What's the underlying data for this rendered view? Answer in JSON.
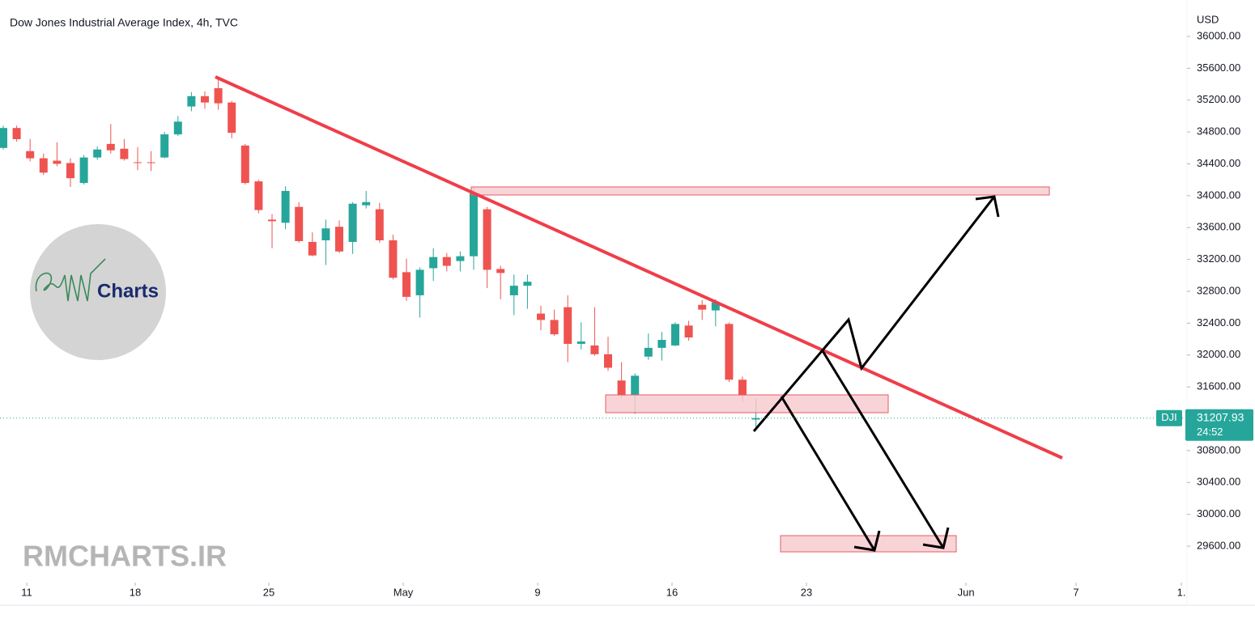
{
  "chart_data": {
    "type": "candlestick",
    "title": "Dow Jones Industrial Average Index, 4h, TVC",
    "currency": "USD",
    "watermark": "RMCHARTS.IR",
    "logo_text": "Charts",
    "up_color": "#26a69a",
    "down_color": "#ef5350",
    "x": [
      0,
      1,
      2,
      3,
      4,
      5,
      6,
      7,
      8,
      9,
      10,
      11,
      12,
      13,
      14,
      15,
      16,
      17,
      18,
      19,
      20,
      21,
      22,
      23,
      24,
      25,
      26,
      27,
      28,
      29,
      30,
      31,
      32,
      33,
      34,
      35,
      36,
      37,
      38,
      39,
      40,
      41,
      42,
      43,
      44,
      45,
      46,
      47,
      48,
      49,
      50,
      51,
      52,
      53,
      54,
      55,
      56
    ],
    "open": [
      34600,
      34850,
      34560,
      34470,
      34440,
      34410,
      34160,
      34480,
      34650,
      34590,
      34420,
      34420,
      34480,
      34770,
      35120,
      35250,
      35350,
      35170,
      34630,
      34180,
      33700,
      33660,
      33860,
      33420,
      33440,
      33610,
      33420,
      33880,
      33830,
      33440,
      33040,
      32750,
      33090,
      33230,
      33180,
      33240,
      33830,
      33080,
      32750,
      32870,
      32520,
      32440,
      32600,
      32140,
      32120,
      32010,
      31680,
      31500,
      31980,
      32090,
      32120,
      32370,
      32630,
      32560,
      32390,
      31690,
      31190
    ],
    "high": [
      34880,
      34880,
      34710,
      34530,
      34670,
      34470,
      34510,
      34620,
      34900,
      34710,
      34610,
      34560,
      34800,
      35000,
      35300,
      35310,
      35490,
      35190,
      34650,
      34200,
      33770,
      34120,
      33920,
      33540,
      33700,
      33690,
      33920,
      34060,
      33910,
      33510,
      33210,
      33100,
      33340,
      33280,
      33300,
      34110,
      33860,
      33120,
      33010,
      33010,
      32620,
      32570,
      32750,
      32410,
      32600,
      32230,
      31910,
      31770,
      32270,
      32290,
      32410,
      32430,
      32690,
      32700,
      32410,
      31730,
      31450
    ],
    "low": [
      34580,
      34680,
      34430,
      34260,
      34370,
      34110,
      34140,
      34450,
      34530,
      34440,
      34320,
      34310,
      34470,
      34750,
      35060,
      35090,
      35080,
      34720,
      34140,
      33780,
      33340,
      33580,
      33410,
      33240,
      33130,
      33280,
      33270,
      33840,
      33410,
      32950,
      32680,
      32470,
      32930,
      33050,
      33050,
      33070,
      32840,
      32700,
      32500,
      32580,
      32310,
      32240,
      31910,
      32070,
      31990,
      31800,
      31460,
      31260,
      31940,
      31930,
      32110,
      32180,
      32440,
      32360,
      31660,
      31410,
      31080
    ],
    "close": [
      34850,
      34710,
      34470,
      34290,
      34400,
      34220,
      34480,
      34580,
      34570,
      34460,
      34410,
      34410,
      34770,
      34930,
      35250,
      35170,
      35160,
      34790,
      34160,
      33820,
      33680,
      34060,
      33430,
      33250,
      33590,
      33300,
      33900,
      33920,
      33440,
      32970,
      32730,
      33070,
      33230,
      33120,
      33240,
      34030,
      33070,
      33030,
      32870,
      32920,
      32440,
      32260,
      32140,
      32170,
      32010,
      31840,
      31490,
      31740,
      32090,
      32190,
      32390,
      32220,
      32570,
      32660,
      31690,
      31490,
      31207.93
    ],
    "xlim": [
      -0.24,
      88.01
    ],
    "xticks": [
      {
        "value": 1.75,
        "label": "11"
      },
      {
        "value": 9.82,
        "label": "18"
      },
      {
        "value": 19.76,
        "label": "25"
      },
      {
        "value": 29.76,
        "label": "May"
      },
      {
        "value": 39.76,
        "label": "9"
      },
      {
        "value": 49.76,
        "label": "16"
      },
      {
        "value": 59.76,
        "label": "23"
      },
      {
        "value": 71.63,
        "label": "Jun"
      },
      {
        "value": 79.82,
        "label": "7"
      },
      {
        "value": 87.65,
        "label": "1."
      }
    ],
    "ylim": [
      29143,
      36457
    ],
    "yticks": [
      {
        "value": 36000,
        "label": "36000.00"
      },
      {
        "value": 35600,
        "label": "35600.00"
      },
      {
        "value": 35200,
        "label": "35200.00"
      },
      {
        "value": 34800,
        "label": "34800.00"
      },
      {
        "value": 34400,
        "label": "34400.00"
      },
      {
        "value": 34000,
        "label": "34000.00"
      },
      {
        "value": 33600,
        "label": "33600.00"
      },
      {
        "value": 33200,
        "label": "33200.00"
      },
      {
        "value": 32800,
        "label": "32800.00"
      },
      {
        "value": 32400,
        "label": "32400.00"
      },
      {
        "value": 32000,
        "label": "32000.00"
      },
      {
        "value": 31600,
        "label": "31600.00"
      },
      {
        "value": 30800,
        "label": "30800.00"
      },
      {
        "value": 30400,
        "label": "30400.00"
      },
      {
        "value": 30000,
        "label": "30000.00"
      },
      {
        "value": 29600,
        "label": "29600.00"
      }
    ],
    "last_price": {
      "symbol": "DJI",
      "value": 31207.93,
      "label": "31207.93",
      "countdown": "24:52"
    }
  }
}
